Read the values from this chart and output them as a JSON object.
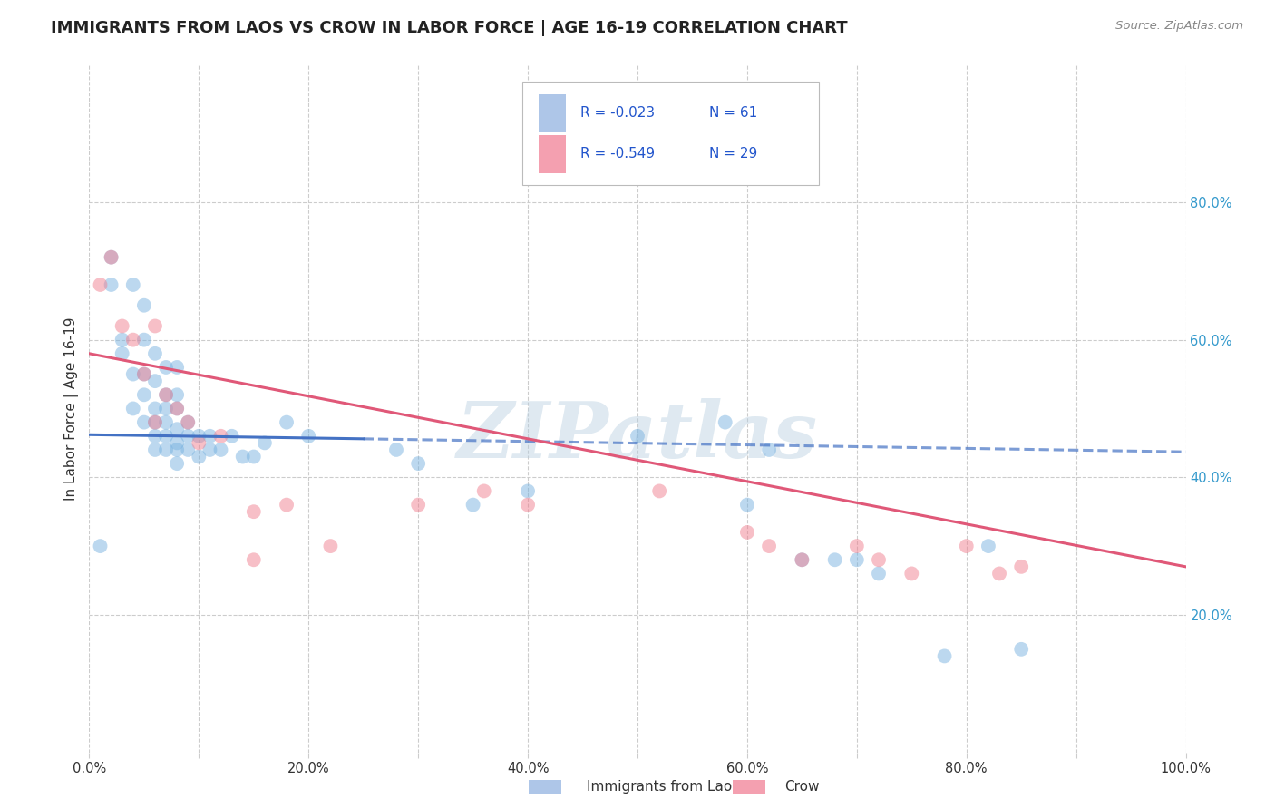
{
  "title": "IMMIGRANTS FROM LAOS VS CROW IN LABOR FORCE | AGE 16-19 CORRELATION CHART",
  "source_text": "Source: ZipAtlas.com",
  "ylabel": "In Labor Force | Age 16-19",
  "xlim": [
    0.0,
    1.0
  ],
  "ylim": [
    0.0,
    1.0
  ],
  "xticks": [
    0.0,
    0.1,
    0.2,
    0.3,
    0.4,
    0.5,
    0.6,
    0.7,
    0.8,
    0.9,
    1.0
  ],
  "xtick_labels": [
    "0.0%",
    "",
    "20.0%",
    "",
    "40.0%",
    "",
    "60.0%",
    "",
    "80.0%",
    "",
    "100.0%"
  ],
  "ytick_positions": [
    0.2,
    0.4,
    0.6,
    0.8
  ],
  "ytick_labels": [
    "20.0%",
    "40.0%",
    "60.0%",
    "80.0%"
  ],
  "legend_entries": [
    {
      "label": "Immigrants from Laos",
      "color": "#aec6e8",
      "R": "-0.023",
      "N": "61"
    },
    {
      "label": "Crow",
      "color": "#f4a0b0",
      "R": "-0.549",
      "N": "29"
    }
  ],
  "blue_scatter_x": [
    0.01,
    0.02,
    0.02,
    0.03,
    0.03,
    0.04,
    0.04,
    0.04,
    0.05,
    0.05,
    0.05,
    0.05,
    0.05,
    0.06,
    0.06,
    0.06,
    0.06,
    0.06,
    0.06,
    0.07,
    0.07,
    0.07,
    0.07,
    0.07,
    0.07,
    0.08,
    0.08,
    0.08,
    0.08,
    0.08,
    0.08,
    0.08,
    0.09,
    0.09,
    0.09,
    0.1,
    0.1,
    0.11,
    0.11,
    0.12,
    0.13,
    0.14,
    0.15,
    0.16,
    0.18,
    0.2,
    0.28,
    0.3,
    0.35,
    0.4,
    0.5,
    0.58,
    0.6,
    0.62,
    0.65,
    0.68,
    0.7,
    0.72,
    0.78,
    0.82,
    0.85
  ],
  "blue_scatter_y": [
    0.3,
    0.72,
    0.68,
    0.6,
    0.58,
    0.5,
    0.55,
    0.68,
    0.48,
    0.52,
    0.55,
    0.6,
    0.65,
    0.44,
    0.46,
    0.48,
    0.5,
    0.54,
    0.58,
    0.44,
    0.46,
    0.48,
    0.5,
    0.52,
    0.56,
    0.42,
    0.44,
    0.45,
    0.47,
    0.5,
    0.52,
    0.56,
    0.44,
    0.46,
    0.48,
    0.43,
    0.46,
    0.44,
    0.46,
    0.44,
    0.46,
    0.43,
    0.43,
    0.45,
    0.48,
    0.46,
    0.44,
    0.42,
    0.36,
    0.38,
    0.46,
    0.48,
    0.36,
    0.44,
    0.28,
    0.28,
    0.28,
    0.26,
    0.14,
    0.3,
    0.15
  ],
  "pink_scatter_x": [
    0.01,
    0.02,
    0.03,
    0.04,
    0.05,
    0.06,
    0.06,
    0.07,
    0.08,
    0.09,
    0.1,
    0.12,
    0.15,
    0.15,
    0.18,
    0.22,
    0.3,
    0.36,
    0.4,
    0.52,
    0.6,
    0.62,
    0.65,
    0.7,
    0.72,
    0.75,
    0.8,
    0.83,
    0.85
  ],
  "pink_scatter_y": [
    0.68,
    0.72,
    0.62,
    0.6,
    0.55,
    0.48,
    0.62,
    0.52,
    0.5,
    0.48,
    0.45,
    0.46,
    0.35,
    0.28,
    0.36,
    0.3,
    0.36,
    0.38,
    0.36,
    0.38,
    0.32,
    0.3,
    0.28,
    0.3,
    0.28,
    0.26,
    0.3,
    0.26,
    0.27
  ],
  "blue_solid_line_x": [
    0.0,
    0.25
  ],
  "blue_solid_line_y": [
    0.462,
    0.456
  ],
  "blue_dashed_line_x": [
    0.25,
    1.0
  ],
  "blue_dashed_line_y": [
    0.456,
    0.437
  ],
  "pink_line_x": [
    0.0,
    1.0
  ],
  "pink_line_y": [
    0.58,
    0.27
  ],
  "scatter_size": 130,
  "scatter_alpha": 0.5,
  "background_color": "#ffffff",
  "grid_color": "#cccccc",
  "title_color": "#222222",
  "watermark_text": "ZIPatlas",
  "watermark_color": "#b8cfe0",
  "watermark_alpha": 0.45,
  "blue_color": "#7ab3e0",
  "pink_color": "#f08090",
  "blue_line_color": "#4472c4",
  "pink_line_color": "#e05878",
  "legend_R_N_color": "#2255cc"
}
